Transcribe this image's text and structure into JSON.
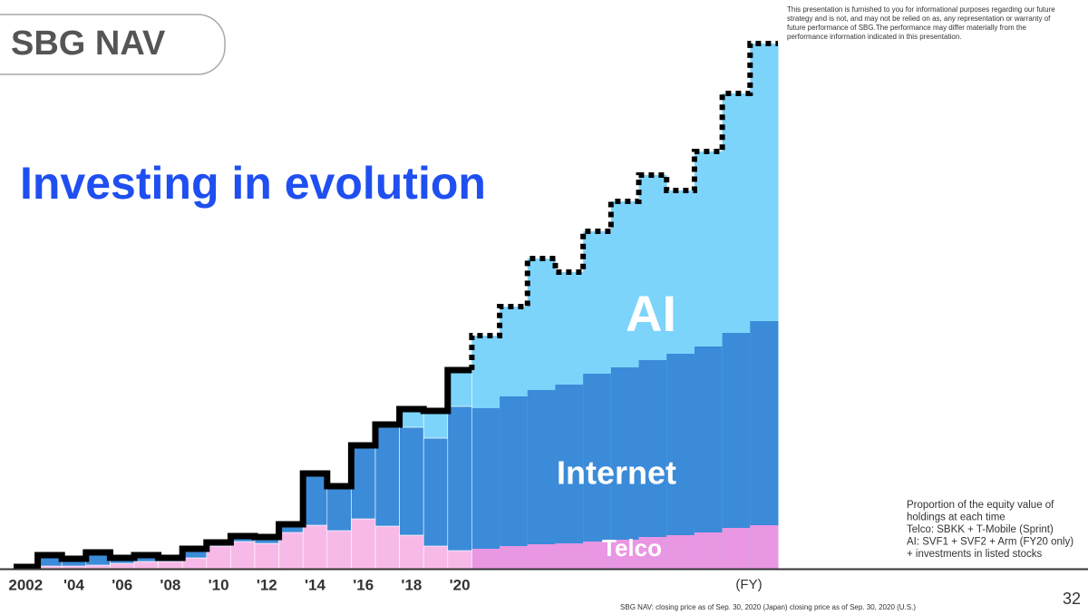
{
  "header": {
    "title": "SBG NAV",
    "headline": "Investing in evolution",
    "disclaimer": [
      "This presentation is furnished to you for informational purposes regarding our future",
      "strategy and is not, and may not be relied on as, any representation or warranty of",
      "future performance of SBG.The performance may differ materially from the",
      "performance information indicated in this presentation."
    ]
  },
  "chart_data": {
    "type": "stacked-step",
    "categories": [
      "2002",
      null,
      "'04",
      null,
      "'06",
      null,
      "'08",
      null,
      "'10",
      null,
      "'12",
      null,
      "'14",
      null,
      "'16",
      null,
      "'18",
      null,
      "'20"
    ],
    "nav_values": [
      2,
      15,
      11,
      18,
      12,
      15,
      12,
      22,
      29,
      36,
      35,
      49,
      105,
      91,
      136,
      159,
      176,
      174,
      219
    ],
    "telco_values": [
      0,
      3,
      3,
      4,
      6,
      8,
      8,
      12,
      25,
      30,
      28,
      40,
      48,
      42,
      55,
      47,
      37,
      25,
      20
    ],
    "internet_values": [
      2,
      12,
      8,
      14,
      6,
      7,
      4,
      10,
      4,
      6,
      7,
      9,
      57,
      49,
      81,
      112,
      119,
      119,
      159
    ],
    "ai_values": [
      0,
      0,
      0,
      0,
      0,
      0,
      0,
      0,
      0,
      0,
      0,
      0,
      0,
      0,
      0,
      0,
      20,
      30,
      40
    ],
    "projection_values": [
      257,
      289,
      342,
      327,
      372,
      405,
      434,
      417,
      460,
      524,
      579
    ],
    "projection_internet": [
      155,
      165,
      170,
      175,
      185,
      190,
      195,
      200,
      205,
      215,
      225
    ],
    "projection_telco": [
      22,
      25,
      27,
      28,
      30,
      32,
      35,
      37,
      40,
      45,
      48
    ],
    "annotations": [
      "AI",
      "Internet",
      "Telco"
    ],
    "x_unit_label": "(FY)",
    "ylim": [
      0,
      600
    ],
    "colors": {
      "telco": "#f7b9e8",
      "internet": "#3b8bd8",
      "ai": "#7dd4fb",
      "projection_telco": "#e996e3",
      "line": "#000000"
    },
    "note": [
      "Proportion of the equity value of",
      "holdings at each time",
      "Telco: SBKK + T-Mobile (Sprint)",
      "AI: SVF1 + SVF2 + Arm (FY20 only)",
      "+ investments in listed stocks"
    ]
  },
  "footer": {
    "source": "SBG NAV: closing price as of Sep. 30, 2020 (Japan) closing price as of Sep. 30, 2020 (U.S.)",
    "page": "32"
  }
}
